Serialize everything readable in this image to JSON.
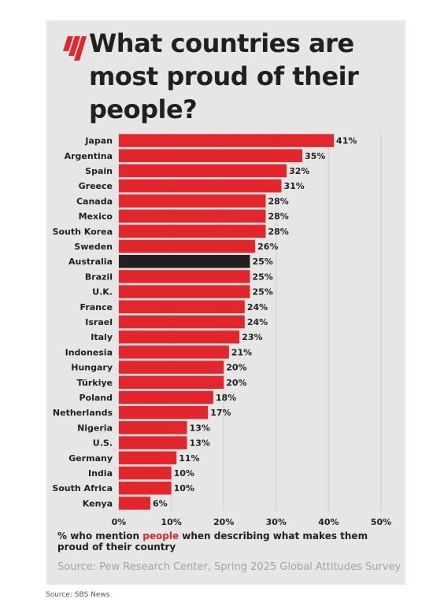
{
  "brand": {
    "logo_icon": "sbs-news-red-bars-logo",
    "accent": "#e3262c",
    "highlight": "#231f20"
  },
  "chart_data": {
    "type": "bar",
    "orientation": "horizontal",
    "title": "What countries are most proud of their people?",
    "categories": [
      "Japan",
      "Argentina",
      "Spain",
      "Greece",
      "Canada",
      "Mexico",
      "South Korea",
      "Sweden",
      "Australia",
      "Brazil",
      "U.K.",
      "France",
      "Israel",
      "Italy",
      "Indonesia",
      "Hungary",
      "Türkiye",
      "Poland",
      "Netherlands",
      "Nigeria",
      "U.S.",
      "Germany",
      "India",
      "South Africa",
      "Kenya"
    ],
    "values": [
      41,
      35,
      32,
      31,
      28,
      28,
      28,
      26,
      25,
      25,
      25,
      24,
      24,
      23,
      21,
      20,
      20,
      18,
      17,
      13,
      13,
      11,
      10,
      10,
      6
    ],
    "value_labels": [
      "41%",
      "35%",
      "32%",
      "31%",
      "28%",
      "28%",
      "28%",
      "26%",
      "25%",
      "25%",
      "25%",
      "24%",
      "24%",
      "23%",
      "21%",
      "20%",
      "20%",
      "18%",
      "17%",
      "13%",
      "13%",
      "11%",
      "10%",
      "10%",
      "6%"
    ],
    "highlight_category": "Australia",
    "bar_color": "#e3262c",
    "highlight_color": "#231f20",
    "xlim": [
      0,
      50
    ],
    "x_ticks": [
      0,
      10,
      20,
      30,
      40,
      50
    ],
    "x_tick_labels": [
      "0%",
      "10%",
      "20%",
      "30%",
      "40%",
      "50%"
    ],
    "grid": true
  },
  "caption": {
    "before": "% who mention ",
    "highlight": "people",
    "after": " when describing what makes them proud of their country"
  },
  "source": "Source: Pew Research Center, Spring 2025 Global Attitudes Survey",
  "footer": "Source: SBS News"
}
